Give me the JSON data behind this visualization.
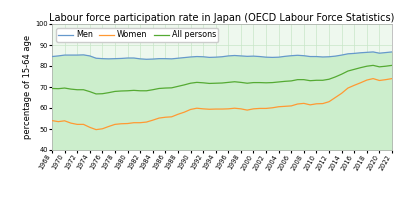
{
  "title": "Labour force participation rate in Japan (OECD Labour Force Statistics)",
  "ylabel": "percentage of 15-64 age",
  "ylim": [
    40,
    100
  ],
  "yticks": [
    40,
    50,
    60,
    70,
    80,
    90,
    100
  ],
  "background_color": "#eef8ee",
  "grid_color": "#c8e6c8",
  "years": [
    1968,
    1969,
    1970,
    1971,
    1972,
    1973,
    1974,
    1975,
    1976,
    1977,
    1978,
    1979,
    1980,
    1981,
    1982,
    1983,
    1984,
    1985,
    1986,
    1987,
    1988,
    1989,
    1990,
    1991,
    1992,
    1993,
    1994,
    1995,
    1996,
    1997,
    1998,
    1999,
    2000,
    2001,
    2002,
    2003,
    2004,
    2005,
    2006,
    2007,
    2008,
    2009,
    2010,
    2011,
    2012,
    2013,
    2014,
    2015,
    2016,
    2017,
    2018,
    2019,
    2020,
    2021,
    2022
  ],
  "men": [
    84.5,
    84.8,
    85.2,
    85.2,
    85.2,
    85.3,
    84.8,
    83.7,
    83.5,
    83.4,
    83.5,
    83.6,
    83.8,
    83.8,
    83.4,
    83.2,
    83.3,
    83.5,
    83.5,
    83.4,
    83.7,
    84.0,
    84.3,
    84.5,
    84.4,
    84.1,
    84.2,
    84.4,
    84.8,
    85.0,
    84.8,
    84.6,
    84.7,
    84.5,
    84.2,
    84.1,
    84.2,
    84.6,
    84.9,
    85.1,
    84.9,
    84.5,
    84.5,
    84.3,
    84.4,
    84.7,
    85.2,
    85.8,
    86.0,
    86.3,
    86.5,
    86.7,
    86.1,
    86.4,
    86.7
  ],
  "women": [
    54.0,
    53.5,
    53.9,
    52.8,
    52.2,
    52.2,
    50.8,
    49.7,
    50.1,
    51.2,
    52.2,
    52.5,
    52.6,
    53.0,
    53.0,
    53.3,
    54.2,
    55.2,
    55.6,
    55.8,
    57.0,
    58.0,
    59.3,
    59.9,
    59.6,
    59.4,
    59.5,
    59.5,
    59.6,
    59.9,
    59.6,
    59.0,
    59.6,
    59.8,
    59.8,
    60.1,
    60.6,
    60.8,
    61.0,
    61.9,
    62.2,
    61.5,
    62.0,
    62.1,
    63.0,
    65.0,
    67.0,
    69.5,
    70.8,
    72.0,
    73.3,
    74.0,
    73.1,
    73.5,
    74.0
  ],
  "all": [
    69.3,
    69.2,
    69.5,
    69.0,
    68.7,
    68.7,
    67.8,
    66.7,
    66.8,
    67.3,
    67.9,
    68.1,
    68.2,
    68.4,
    68.2,
    68.2,
    68.7,
    69.3,
    69.5,
    69.6,
    70.3,
    71.0,
    71.8,
    72.2,
    72.0,
    71.7,
    71.8,
    71.9,
    72.2,
    72.5,
    72.2,
    71.8,
    72.1,
    72.1,
    72.0,
    72.1,
    72.4,
    72.7,
    72.9,
    73.5,
    73.5,
    73.0,
    73.2,
    73.2,
    73.7,
    74.8,
    76.1,
    77.6,
    78.4,
    79.2,
    79.9,
    80.3,
    79.6,
    79.9,
    80.3
  ],
  "men_color": "#6699cc",
  "women_color": "#ff9933",
  "all_color": "#55aa33",
  "fill_color": "#cceecc",
  "legend_labels": [
    "Men",
    "Women",
    "All persons"
  ],
  "title_fontsize": 7.0,
  "label_fontsize": 6.0,
  "tick_fontsize": 4.8,
  "legend_fontsize": 5.8
}
